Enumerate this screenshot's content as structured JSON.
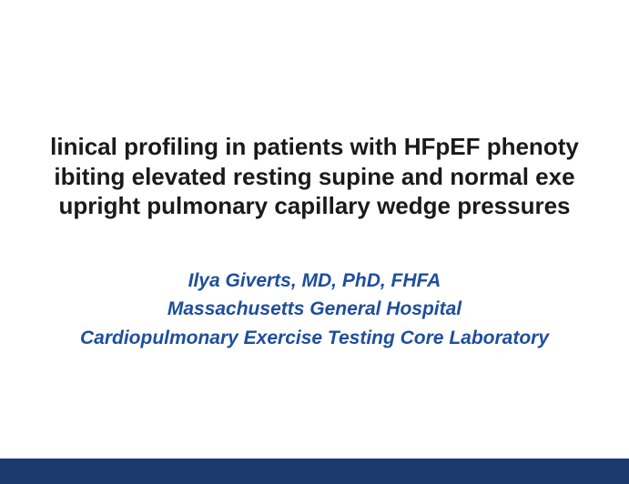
{
  "title": {
    "line1": "linical profiling in patients with HFpEF phenoty",
    "line2": "ibiting elevated resting supine and normal exe",
    "line3": "upright pulmonary capillary wedge pressures",
    "fontsize": 26,
    "color": "#1a1a1a",
    "fontweight": "bold"
  },
  "author": {
    "name": "Ilya Giverts, MD, PhD, FHFA",
    "affiliation1": "Massachusetts General Hospital",
    "affiliation2": "Cardiopulmonary Exercise Testing Core Laboratory",
    "fontsize": 21,
    "color": "#1f4e9c",
    "fontweight": "bold",
    "fontstyle": "italic"
  },
  "layout": {
    "background_color": "#ffffff",
    "bottom_bar_color": "#1a3a6e",
    "bottom_bar_height": 28
  }
}
